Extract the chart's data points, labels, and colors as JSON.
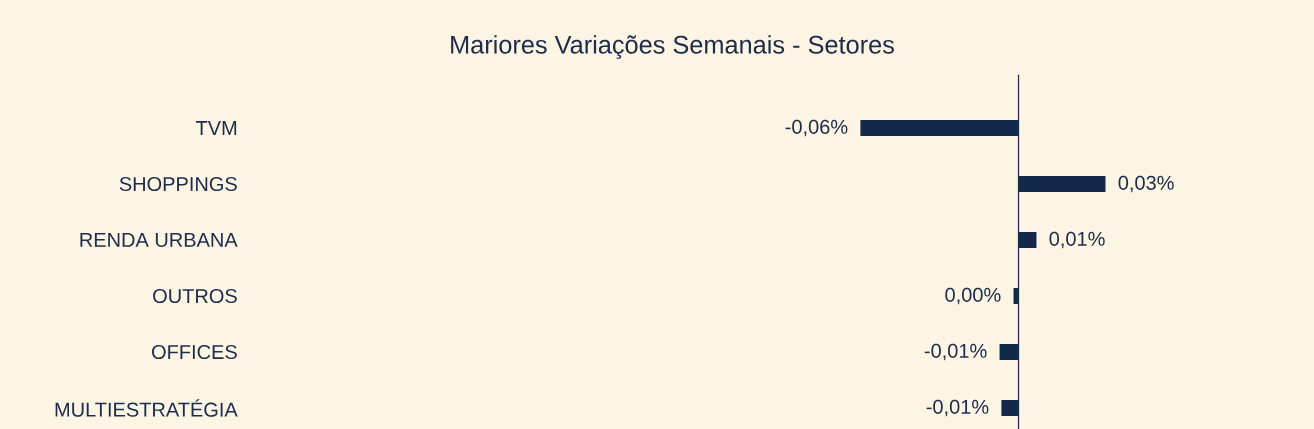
{
  "chart_data": {
    "type": "bar",
    "orientation": "horizontal",
    "tick_labels": "y",
    "title": "Mariores Variações Semanais - Setores",
    "categories": [
      "TVM",
      "SHOPPINGS",
      "RENDA URBANA",
      "OUTROS",
      "OFFICES",
      "MULTIESTRATÉGIA"
    ],
    "values": [
      -0.06,
      0.033,
      0.0068,
      -0.0019,
      -0.0072,
      -0.0065
    ],
    "value_labels": [
      "-0,06%",
      "0,03%",
      "0,01%",
      "0,00%",
      "-0,01%",
      "-0,01%"
    ],
    "color": "#13294b"
  }
}
